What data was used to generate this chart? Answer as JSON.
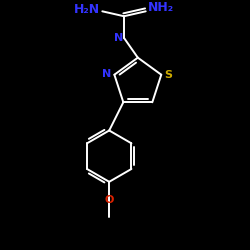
{
  "background_color": "#000000",
  "bond_color": "#ffffff",
  "N_color": "#3333ff",
  "S_color": "#ccaa00",
  "O_color": "#dd2200",
  "text_H2N_left": "H₂N",
  "text_NH2_right": "NH₂",
  "text_N_upper": "N",
  "text_N_lower": "N",
  "text_S": "S",
  "text_O": "O",
  "figsize": [
    2.5,
    2.5
  ],
  "dpi": 100,
  "lw": 1.4,
  "font_size_label": 9,
  "font_size_atom": 8
}
